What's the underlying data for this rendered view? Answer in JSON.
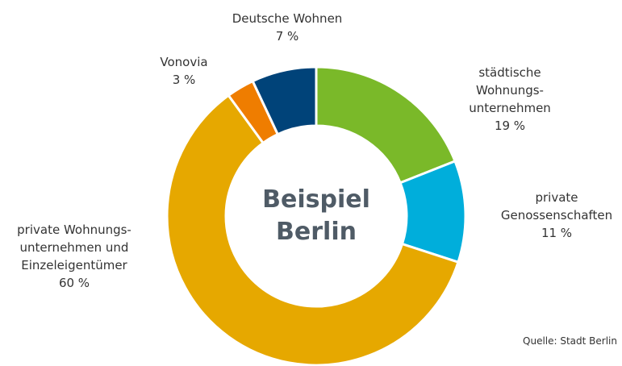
{
  "chart_data": {
    "type": "donut",
    "center_text": "Beispiel\nBerlin",
    "categories": [
      "städtische Wohnungs-\nunternehmen",
      "private\nGenossenschaften",
      "private Wohnungs-\nunternehmen und\nEinzeleigentümer",
      "Vonovia",
      "Deutsche Wohnen"
    ],
    "values": [
      19,
      11,
      60,
      3,
      7
    ],
    "value_labels": [
      "19 %",
      "11 %",
      "60 %",
      "3 %",
      "7 %"
    ],
    "colors": [
      "#7ab929",
      "#00aedb",
      "#e6a800",
      "#ef7d00",
      "#004379"
    ],
    "source": "Quelle: Stadt Berlin"
  }
}
